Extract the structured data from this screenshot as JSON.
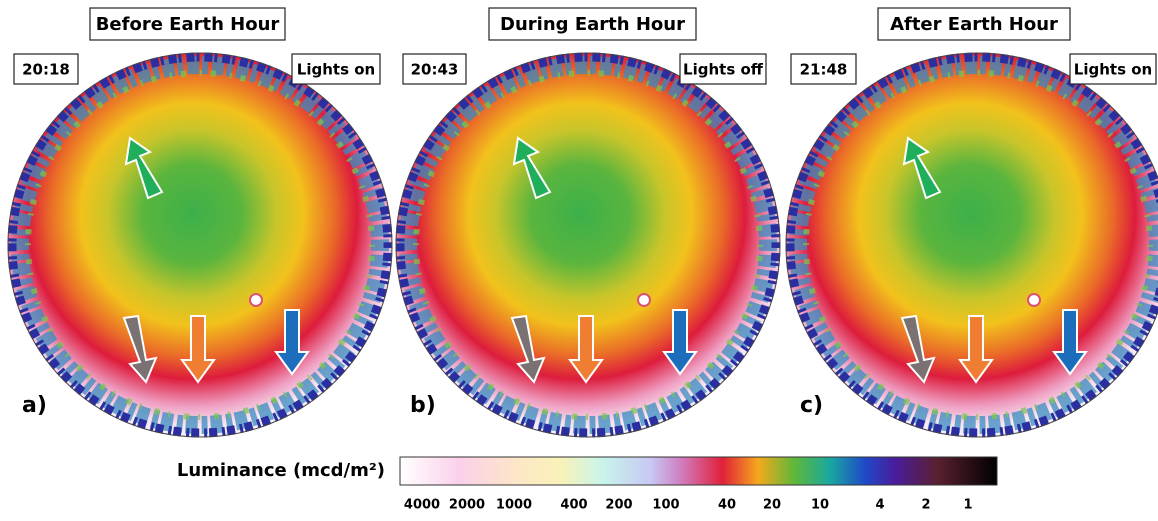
{
  "panels": [
    {
      "title": "Before Earth Hour",
      "time": "20:18",
      "lights": "Lights on",
      "label": "a)"
    },
    {
      "title": "During Earth Hour",
      "time": "20:43",
      "lights": "Lights off",
      "label": "b)"
    },
    {
      "title": "After Earth Hour",
      "time": "21:48",
      "lights": "Lights on",
      "label": "c)"
    }
  ],
  "colorbar": {
    "title": "Luminance (mcd/m²)",
    "ticks": [
      4000,
      2000,
      1000,
      400,
      200,
      100,
      40,
      20,
      10,
      4,
      2,
      1
    ]
  }
}
